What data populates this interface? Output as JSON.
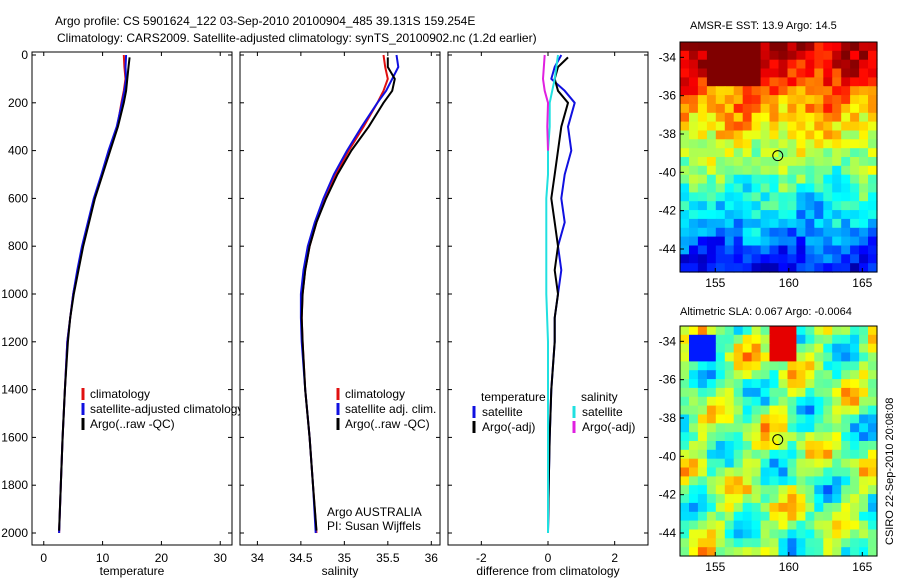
{
  "title": {
    "line1": "Argo profile: CS 5901624_122 03-Sep-2010 20100904_485 39.131S 159.254E",
    "line2": "Climatology: CARS2009. Satellite-adjusted climatology: synTS_20100902.nc (1.2d earlier)"
  },
  "side_label": "CSIRO 22-Sep-2010 20:08:08",
  "colors": {
    "climatology": "#e01010",
    "satellite": "#1010e0",
    "argo": "#000000",
    "satellite_sal": "#20e0e0",
    "argo_adj": "#e020e0"
  },
  "chart_data": [
    {
      "type": "line",
      "xlabel": "temperature",
      "ylabel": "",
      "xlim": [
        -2,
        32
      ],
      "ylim": [
        2080,
        0
      ],
      "xticks": [
        "0",
        "10",
        "20",
        "30"
      ],
      "yticks": [
        "0",
        "200",
        "400",
        "600",
        "800",
        "1000",
        "1200",
        "1400",
        "1600",
        "1800",
        "2000"
      ],
      "legend": {
        "position": "bottom-right",
        "items": [
          "climatology",
          "satellite-adjusted climatology",
          "Argo(..raw -QC)"
        ]
      },
      "series": [
        {
          "name": "climatology",
          "color": "#e01010",
          "points": [
            [
              13.6,
              0
            ],
            [
              13.7,
              50
            ],
            [
              13.9,
              100
            ],
            [
              13.6,
              150
            ],
            [
              13.2,
              200
            ],
            [
              12.5,
              300
            ],
            [
              11.2,
              400
            ],
            [
              9.9,
              500
            ],
            [
              8.6,
              600
            ],
            [
              7.6,
              700
            ],
            [
              6.6,
              800
            ],
            [
              5.8,
              900
            ],
            [
              5.0,
              1000
            ],
            [
              4.5,
              1100
            ],
            [
              4.0,
              1200
            ],
            [
              3.6,
              1400
            ],
            [
              3.2,
              1600
            ],
            [
              2.9,
              1800
            ],
            [
              2.6,
              2000
            ]
          ]
        },
        {
          "name": "satellite-adjusted climatology",
          "color": "#1010e0",
          "points": [
            [
              14.0,
              0
            ],
            [
              13.9,
              50
            ],
            [
              14.0,
              100
            ],
            [
              13.7,
              150
            ],
            [
              13.3,
              200
            ],
            [
              12.4,
              300
            ],
            [
              11.0,
              400
            ],
            [
              9.8,
              500
            ],
            [
              8.5,
              600
            ],
            [
              7.5,
              700
            ],
            [
              6.5,
              800
            ],
            [
              5.7,
              900
            ],
            [
              5.0,
              1000
            ],
            [
              4.5,
              1100
            ],
            [
              4.0,
              1200
            ],
            [
              3.6,
              1400
            ],
            [
              3.2,
              1600
            ],
            [
              2.9,
              1800
            ],
            [
              2.6,
              2000
            ]
          ]
        },
        {
          "name": "Argo(..raw -QC)",
          "color": "#000000",
          "points": [
            [
              14.6,
              10
            ],
            [
              14.4,
              50
            ],
            [
              14.2,
              100
            ],
            [
              14.0,
              150
            ],
            [
              13.6,
              200
            ],
            [
              12.6,
              300
            ],
            [
              11.3,
              400
            ],
            [
              10.0,
              500
            ],
            [
              8.7,
              600
            ],
            [
              7.7,
              700
            ],
            [
              6.7,
              800
            ],
            [
              5.9,
              900
            ],
            [
              5.1,
              1000
            ],
            [
              4.5,
              1100
            ],
            [
              4.1,
              1200
            ],
            [
              3.6,
              1400
            ],
            [
              3.2,
              1600
            ],
            [
              2.9,
              1800
            ],
            [
              2.6,
              1990
            ]
          ]
        }
      ]
    },
    {
      "type": "line",
      "xlabel": "salinity",
      "ylabel": "",
      "xlim": [
        33.8,
        36.1
      ],
      "ylim": [
        2080,
        0
      ],
      "xticks": [
        "34",
        "34.5",
        "35",
        "35.5",
        "36"
      ],
      "yticks": [],
      "legend": {
        "position": "bottom-right",
        "items": [
          "climatology",
          "satellite adj. clim.",
          "Argo(..raw -QC)"
        ]
      },
      "annotation": [
        "Argo AUSTRALIA",
        "PI: Susan Wijffels"
      ],
      "series": [
        {
          "name": "climatology",
          "color": "#e01010",
          "points": [
            [
              35.45,
              0
            ],
            [
              35.47,
              50
            ],
            [
              35.5,
              100
            ],
            [
              35.45,
              150
            ],
            [
              35.38,
              200
            ],
            [
              35.22,
              300
            ],
            [
              35.05,
              400
            ],
            [
              34.9,
              500
            ],
            [
              34.78,
              600
            ],
            [
              34.68,
              700
            ],
            [
              34.6,
              800
            ],
            [
              34.55,
              900
            ],
            [
              34.52,
              1000
            ],
            [
              34.51,
              1100
            ],
            [
              34.52,
              1200
            ],
            [
              34.55,
              1400
            ],
            [
              34.6,
              1600
            ],
            [
              34.64,
              1800
            ],
            [
              34.68,
              2000
            ]
          ]
        },
        {
          "name": "satellite adj. clim.",
          "color": "#1010e0",
          "points": [
            [
              35.6,
              0
            ],
            [
              35.62,
              50
            ],
            [
              35.55,
              100
            ],
            [
              35.48,
              150
            ],
            [
              35.38,
              200
            ],
            [
              35.2,
              300
            ],
            [
              35.03,
              400
            ],
            [
              34.88,
              500
            ],
            [
              34.76,
              600
            ],
            [
              34.66,
              700
            ],
            [
              34.58,
              800
            ],
            [
              34.53,
              900
            ],
            [
              34.5,
              1000
            ],
            [
              34.5,
              1100
            ],
            [
              34.51,
              1200
            ],
            [
              34.55,
              1400
            ],
            [
              34.6,
              1600
            ],
            [
              34.64,
              1800
            ],
            [
              34.67,
              2000
            ]
          ]
        },
        {
          "name": "Argo(..raw -QC)",
          "color": "#000000",
          "points": [
            [
              35.5,
              10
            ],
            [
              35.5,
              50
            ],
            [
              35.58,
              100
            ],
            [
              35.55,
              150
            ],
            [
              35.45,
              200
            ],
            [
              35.28,
              300
            ],
            [
              35.08,
              400
            ],
            [
              34.92,
              500
            ],
            [
              34.79,
              600
            ],
            [
              34.68,
              700
            ],
            [
              34.6,
              800
            ],
            [
              34.55,
              900
            ],
            [
              34.52,
              1000
            ],
            [
              34.51,
              1100
            ],
            [
              34.52,
              1200
            ],
            [
              34.55,
              1400
            ],
            [
              34.6,
              1600
            ],
            [
              34.64,
              1800
            ],
            [
              34.68,
              1990
            ]
          ]
        }
      ]
    },
    {
      "type": "line",
      "xlabel": "difference from climatology",
      "ylabel": "",
      "xlim": [
        -3,
        3
      ],
      "ylim": [
        2080,
        0
      ],
      "xticks": [
        "-2",
        "0",
        "2"
      ],
      "yticks": [],
      "legend": {
        "position": "bottom",
        "items": [
          "temperature",
          "satellite",
          "Argo(-adj)",
          "salinity",
          "satellite",
          "Argo(-adj)"
        ]
      },
      "series": [
        {
          "name": "satellite",
          "color": "#1010e0",
          "points": [
            [
              0.4,
              0
            ],
            [
              0.2,
              50
            ],
            [
              0.1,
              100
            ],
            [
              0.5,
              150
            ],
            [
              0.8,
              200
            ],
            [
              0.6,
              300
            ],
            [
              0.7,
              400
            ],
            [
              0.5,
              500
            ],
            [
              0.4,
              600
            ],
            [
              0.5,
              700
            ],
            [
              0.3,
              800
            ],
            [
              0.4,
              900
            ],
            [
              0.3,
              1000
            ],
            [
              0.2,
              1100
            ],
            [
              0.2,
              1200
            ],
            [
              0.1,
              1400
            ],
            [
              0.05,
              1600
            ],
            [
              0.02,
              1800
            ],
            [
              0.0,
              2000
            ]
          ]
        },
        {
          "name": "Argo(-adj)",
          "color": "#000000",
          "points": [
            [
              0.6,
              10
            ],
            [
              0.3,
              50
            ],
            [
              0.2,
              100
            ],
            [
              0.3,
              150
            ],
            [
              0.6,
              200
            ],
            [
              0.4,
              300
            ],
            [
              0.3,
              400
            ],
            [
              0.2,
              500
            ],
            [
              0.1,
              600
            ],
            [
              0.2,
              700
            ],
            [
              0.3,
              800
            ],
            [
              0.2,
              900
            ],
            [
              0.3,
              1000
            ],
            [
              0.2,
              1100
            ],
            [
              0.2,
              1200
            ],
            [
              0.1,
              1400
            ],
            [
              0.05,
              1600
            ],
            [
              0.02,
              1800
            ],
            [
              0.0,
              1990
            ]
          ]
        },
        {
          "name": "satellite",
          "color": "#20e0e0",
          "points": [
            [
              0.3,
              0
            ],
            [
              0.2,
              100
            ],
            [
              0.05,
              200
            ],
            [
              0.05,
              300
            ],
            [
              0.0,
              400
            ],
            [
              0.0,
              500
            ],
            [
              -0.05,
              600
            ],
            [
              -0.05,
              800
            ],
            [
              -0.05,
              1000
            ],
            [
              0.0,
              1200
            ],
            [
              0.0,
              1400
            ],
            [
              0.0,
              1600
            ],
            [
              0.0,
              1800
            ],
            [
              0.0,
              2000
            ]
          ]
        },
        {
          "name": "Argo(-adj)",
          "color": "#e020e0",
          "points": [
            [
              -0.1,
              0
            ],
            [
              -0.15,
              100
            ],
            [
              -0.1,
              150
            ],
            [
              0.0,
              200
            ],
            [
              -0.02,
              300
            ],
            [
              0.0,
              400
            ]
          ]
        }
      ]
    }
  ],
  "maps": [
    {
      "title": "AMSR-E SST: 13.9 Argo: 14.5",
      "xticks": [
        "155",
        "160",
        "165"
      ],
      "yticks": [
        "-34",
        "-36",
        "-38",
        "-40",
        "-42",
        "-44"
      ],
      "lon": [
        152.6,
        166.0
      ],
      "lat": [
        -45.2,
        -33.2
      ],
      "marker": [
        159.25,
        -39.13
      ]
    },
    {
      "title": "Altimetric SLA: 0.067 Argo: -0.0064",
      "xticks": [
        "155",
        "160",
        "165"
      ],
      "yticks": [
        "-34",
        "-36",
        "-38",
        "-40",
        "-42",
        "-44"
      ],
      "lon": [
        152.6,
        166.0
      ],
      "lat": [
        -45.2,
        -33.2
      ],
      "marker": [
        159.25,
        -39.13
      ]
    }
  ]
}
